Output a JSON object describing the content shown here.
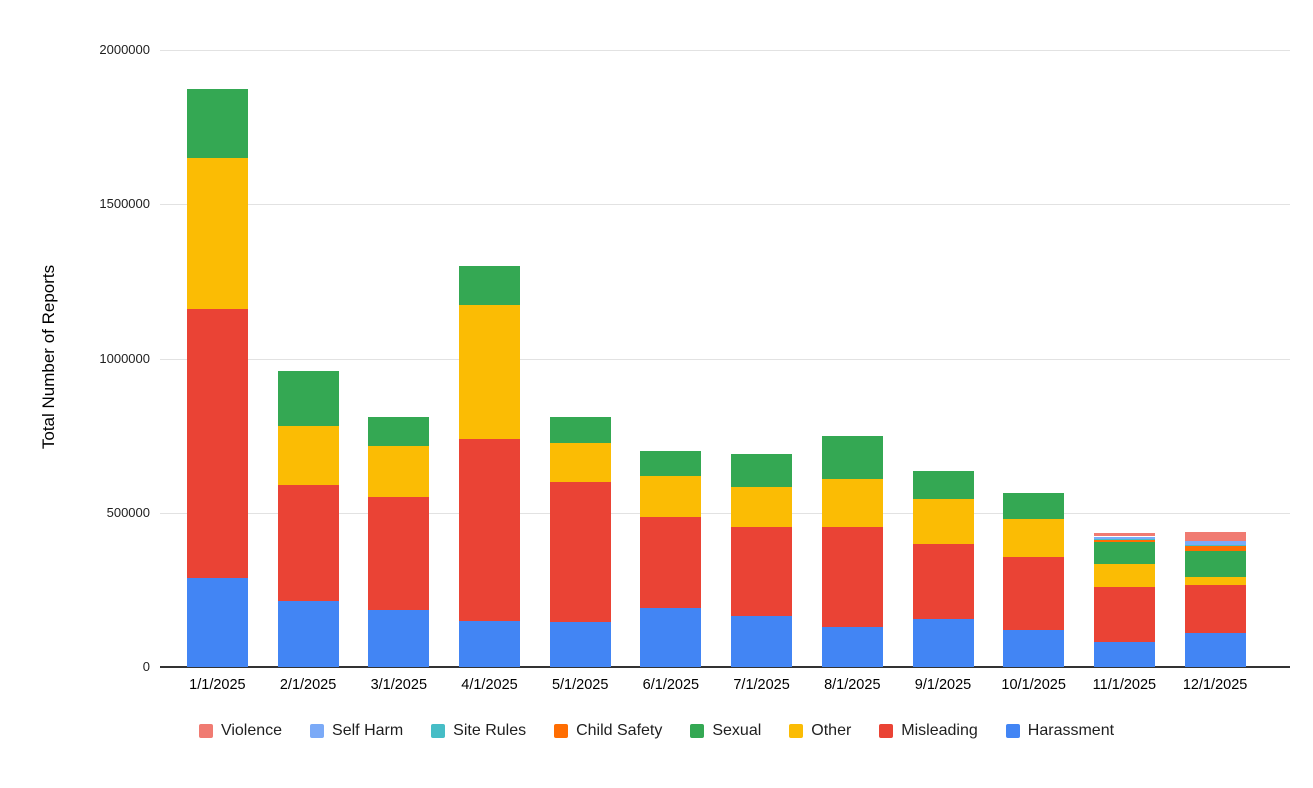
{
  "chart_data": {
    "type": "bar",
    "variant": "stacked-vertical-columns",
    "title": "",
    "xlabel": "",
    "ylabel": "Total Number of Reports",
    "ylim": [
      0,
      2000000
    ],
    "yticks": [
      0,
      500000,
      1000000,
      1500000,
      2000000
    ],
    "grid": true,
    "legend_position": "bottom",
    "legend_order": [
      "Violence",
      "Self Harm",
      "Site Rules",
      "Child Safety",
      "Sexual",
      "Other",
      "Misleading",
      "Harassment"
    ],
    "stacking": "series listed bottom-to-top",
    "categories": [
      "1/1/2025",
      "2/1/2025",
      "3/1/2025",
      "4/1/2025",
      "5/1/2025",
      "6/1/2025",
      "7/1/2025",
      "8/1/2025",
      "9/1/2025",
      "10/1/2025",
      "11/1/2025",
      "12/1/2025"
    ],
    "series": [
      {
        "name": "Harassment",
        "color": "#4285F4",
        "values": [
          290000,
          215000,
          185000,
          150000,
          145000,
          190000,
          165000,
          130000,
          155000,
          120000,
          80000,
          110000
        ]
      },
      {
        "name": "Misleading",
        "color": "#EA4335",
        "values": [
          870000,
          375000,
          365000,
          590000,
          455000,
          295000,
          290000,
          325000,
          245000,
          235000,
          180000,
          155000
        ]
      },
      {
        "name": "Other",
        "color": "#FBBC04",
        "values": [
          490000,
          190000,
          165000,
          435000,
          125000,
          135000,
          130000,
          155000,
          145000,
          125000,
          75000,
          28000
        ]
      },
      {
        "name": "Sexual",
        "color": "#34A853",
        "values": [
          225000,
          180000,
          95000,
          125000,
          85000,
          80000,
          105000,
          140000,
          90000,
          85000,
          71000,
          84000
        ]
      },
      {
        "name": "Child Safety",
        "color": "#FF6D01",
        "values": [
          0,
          0,
          0,
          0,
          0,
          0,
          0,
          0,
          0,
          0,
          6000,
          15000
        ]
      },
      {
        "name": "Site Rules",
        "color": "#46BDC6",
        "values": [
          0,
          0,
          0,
          0,
          0,
          0,
          0,
          0,
          0,
          0,
          3000,
          3000
        ]
      },
      {
        "name": "Self Harm",
        "color": "#7BAAF7",
        "values": [
          0,
          0,
          0,
          0,
          0,
          0,
          0,
          0,
          0,
          0,
          8000,
          15000
        ]
      },
      {
        "name": "Violence",
        "color": "#F07B72",
        "values": [
          0,
          0,
          0,
          0,
          0,
          0,
          0,
          0,
          0,
          0,
          12000,
          27000
        ]
      }
    ]
  }
}
